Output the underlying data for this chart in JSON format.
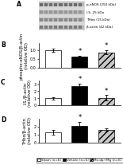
{
  "panel_A_label": "A",
  "panel_B_label": "B",
  "panel_C_label": "C",
  "panel_D_label": "D",
  "wb_labels": [
    "p-eNOS (250 kDa)",
    "I.S. 25 kDa",
    "THbα (15 kDa)",
    "β-actin (42 kDa)"
  ],
  "bar_colors_B": [
    "white",
    "black",
    "#c8c8c8"
  ],
  "bar_colors_C": [
    "white",
    "black",
    "#c8c8c8"
  ],
  "bar_colors_D": [
    "white",
    "black",
    "#c8c8c8"
  ],
  "bar_hatches_B": [
    "",
    "",
    "////"
  ],
  "bar_hatches_C": [
    "",
    "",
    "////"
  ],
  "bar_hatches_D": [
    "",
    "",
    "////"
  ],
  "B_values": [
    1.0,
    0.62,
    0.88
  ],
  "B_errors": [
    0.1,
    0.07,
    0.13
  ],
  "B_ylabel": "phospho-eNOS/β-actin\n(relative OD)",
  "B_ylim": [
    0,
    1.4
  ],
  "B_yticks": [
    0.0,
    0.5,
    1.0
  ],
  "B_sig": [
    false,
    true,
    true
  ],
  "C_values": [
    1.0,
    2.75,
    1.05
  ],
  "C_errors": [
    0.18,
    0.38,
    0.38
  ],
  "C_ylabel": "I.S./β-actin\n(relative OD)",
  "C_ylim": [
    0,
    3.5
  ],
  "C_yticks": [
    0,
    1,
    2,
    3
  ],
  "C_sig": [
    false,
    true,
    true
  ],
  "D_values": [
    1.3,
    2.05,
    1.55
  ],
  "D_errors": [
    0.28,
    0.52,
    0.22
  ],
  "D_ylabel": "THbα/β-actin\n(relative OD)",
  "D_ylim": [
    0,
    3.0
  ],
  "D_yticks": [
    0,
    1,
    2
  ],
  "D_sig": [
    false,
    true,
    false
  ],
  "legend_labels": [
    "Sham (n=6)",
    "Vehicle (n=6)",
    "Me.dp+Mg (n=6)"
  ],
  "legend_colors": [
    "white",
    "black",
    "#c8c8c8"
  ],
  "legend_hatches": [
    "",
    "",
    "////"
  ],
  "bar_width": 0.6,
  "edgecolor": "black",
  "fontsize_ylabel": 3.8,
  "fontsize_ticks": 3.5,
  "fontsize_panel": 5.5,
  "fontsize_legend": 3.0,
  "fontsize_wb": 3.0,
  "fontsize_sig": 6.0
}
